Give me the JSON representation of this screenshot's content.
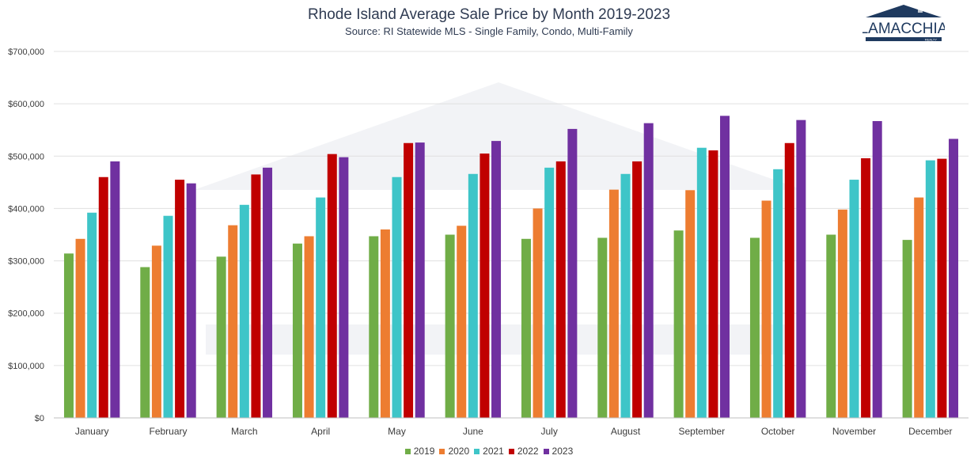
{
  "title": "Rhode Island Average Sale Price by Month 2019-2023",
  "subtitle": "Source: RI Statewide MLS - Single Family, Condo, Multi-Family",
  "logo": {
    "name": "LAMACCHIA",
    "tagline": "REALTY",
    "color": "#1f3a5f"
  },
  "colors": {
    "2019": "#70ad47",
    "2020": "#ed7d31",
    "2021": "#3ec5c8",
    "2022": "#c00000",
    "2023": "#7030a0"
  },
  "chart_data": {
    "type": "bar",
    "title": "Rhode Island Average Sale Price by Month 2019-2023",
    "subtitle": "Source: RI Statewide MLS - Single Family, Condo, Multi-Family",
    "xlabel": "",
    "ylabel": "",
    "ylim": [
      0,
      700000
    ],
    "ytick_labels": [
      "$0",
      "$100,000",
      "$200,000",
      "$300,000",
      "$400,000",
      "$500,000",
      "$600,000",
      "$700,000"
    ],
    "grid": true,
    "legend_position": "bottom",
    "categories": [
      "January",
      "February",
      "March",
      "April",
      "May",
      "June",
      "July",
      "August",
      "September",
      "October",
      "November",
      "December"
    ],
    "series": [
      {
        "name": "2019",
        "color": "#70ad47",
        "values": [
          314000,
          288000,
          308000,
          333000,
          347000,
          350000,
          342000,
          344000,
          358000,
          344000,
          350000,
          340000
        ]
      },
      {
        "name": "2020",
        "color": "#ed7d31",
        "values": [
          342000,
          329000,
          368000,
          347000,
          360000,
          367000,
          400000,
          436000,
          435000,
          415000,
          398000,
          421000
        ]
      },
      {
        "name": "2021",
        "color": "#3ec5c8",
        "values": [
          392000,
          386000,
          407000,
          421000,
          460000,
          466000,
          478000,
          466000,
          516000,
          475000,
          455000,
          492000
        ]
      },
      {
        "name": "2022",
        "color": "#c00000",
        "values": [
          460000,
          455000,
          465000,
          504000,
          525000,
          505000,
          490000,
          490000,
          511000,
          525000,
          496000,
          495000
        ]
      },
      {
        "name": "2023",
        "color": "#7030a0",
        "values": [
          490000,
          448000,
          478000,
          498000,
          526000,
          529000,
          552000,
          563000,
          577000,
          569000,
          567000,
          533000
        ]
      }
    ]
  }
}
